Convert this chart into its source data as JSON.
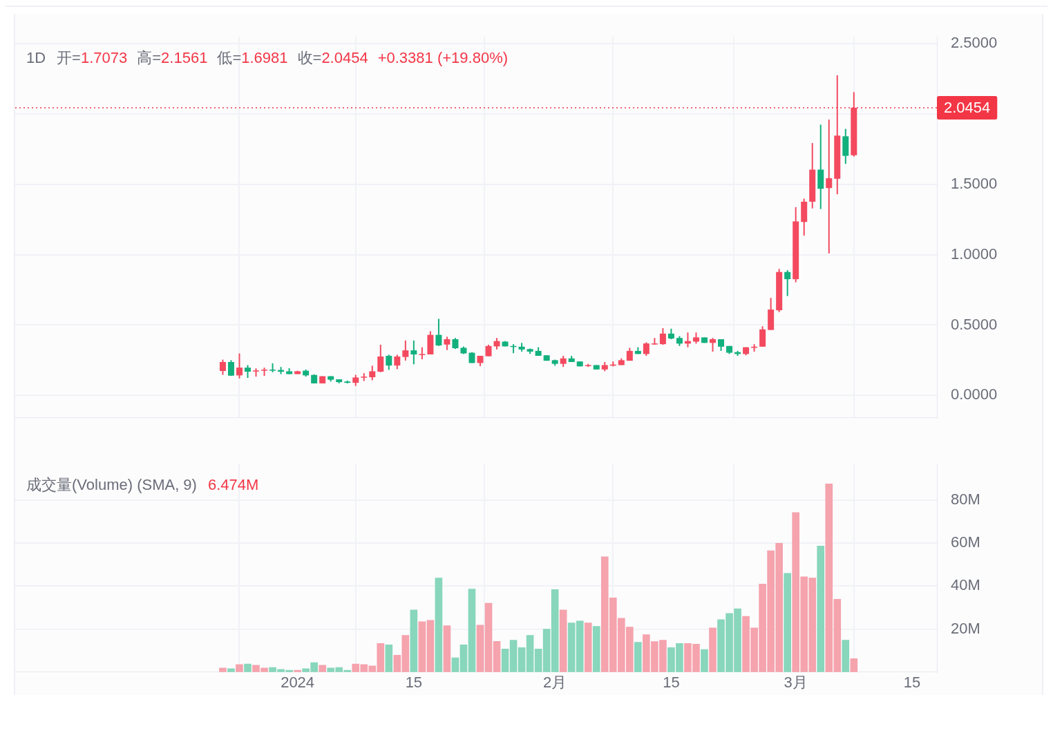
{
  "chart_data": [
    {
      "type": "candlestick",
      "title": "1D",
      "annotations": [
        "开=1.7073",
        "高=2.1561",
        "低=1.6981",
        "收=2.0454",
        "+0.3381 (+19.80%)"
      ],
      "x": [
        "2023-12-23",
        "2023-12-24",
        "2023-12-25",
        "2023-12-26",
        "2023-12-27",
        "2023-12-28",
        "2023-12-29",
        "2023-12-30",
        "2023-12-31",
        "2024-01-01",
        "2024-01-02",
        "2024-01-03",
        "2024-01-04",
        "2024-01-05",
        "2024-01-06",
        "2024-01-07",
        "2024-01-08",
        "2024-01-09",
        "2024-01-10",
        "2024-01-11",
        "2024-01-12",
        "2024-01-13",
        "2024-01-14",
        "2024-01-15",
        "2024-01-16",
        "2024-01-17",
        "2024-01-18",
        "2024-01-19",
        "2024-01-20",
        "2024-01-21",
        "2024-01-22",
        "2024-01-23",
        "2024-01-24",
        "2024-01-25",
        "2024-01-26",
        "2024-01-27",
        "2024-01-28",
        "2024-01-29",
        "2024-01-30",
        "2024-01-31",
        "2024-02-01",
        "2024-02-02",
        "2024-02-03",
        "2024-02-04",
        "2024-02-05",
        "2024-02-06",
        "2024-02-07",
        "2024-02-08",
        "2024-02-09",
        "2024-02-10",
        "2024-02-11",
        "2024-02-12",
        "2024-02-13",
        "2024-02-14",
        "2024-02-15",
        "2024-02-16",
        "2024-02-17",
        "2024-02-18",
        "2024-02-19",
        "2024-02-20",
        "2024-02-21",
        "2024-02-22",
        "2024-02-23",
        "2024-02-24",
        "2024-02-25",
        "2024-02-26",
        "2024-02-27",
        "2024-02-28",
        "2024-02-29",
        "2024-03-01",
        "2024-03-02",
        "2024-03-03",
        "2024-03-04",
        "2024-03-05",
        "2024-03-06",
        "2024-03-07",
        "2024-03-08"
      ],
      "ohlc": [
        [
          0.173,
          0.254,
          0.146,
          0.237
        ],
        [
          0.237,
          0.25,
          0.138,
          0.14
        ],
        [
          0.142,
          0.298,
          0.12,
          0.197
        ],
        [
          0.197,
          0.215,
          0.124,
          0.168
        ],
        [
          0.171,
          0.192,
          0.133,
          0.177
        ],
        [
          0.177,
          0.197,
          0.138,
          0.183
        ],
        [
          0.183,
          0.228,
          0.164,
          0.177
        ],
        [
          0.18,
          0.202,
          0.151,
          0.168
        ],
        [
          0.171,
          0.193,
          0.151,
          0.151
        ],
        [
          0.151,
          0.175,
          0.151,
          0.171
        ],
        [
          0.175,
          0.184,
          0.133,
          0.142
        ],
        [
          0.145,
          0.149,
          0.085,
          0.085
        ],
        [
          0.085,
          0.136,
          0.085,
          0.136
        ],
        [
          0.136,
          0.136,
          0.098,
          0.111
        ],
        [
          0.114,
          0.114,
          0.086,
          0.094
        ],
        [
          0.098,
          0.105,
          0.085,
          0.089
        ],
        [
          0.089,
          0.146,
          0.067,
          0.127
        ],
        [
          0.127,
          0.158,
          0.102,
          0.133
        ],
        [
          0.129,
          0.211,
          0.107,
          0.171
        ],
        [
          0.168,
          0.36,
          0.165,
          0.276
        ],
        [
          0.281,
          0.289,
          0.181,
          0.212
        ],
        [
          0.212,
          0.289,
          0.186,
          0.276
        ],
        [
          0.273,
          0.39,
          0.247,
          0.32
        ],
        [
          0.32,
          0.39,
          0.221,
          0.291
        ],
        [
          0.288,
          0.342,
          0.256,
          0.294
        ],
        [
          0.291,
          0.456,
          0.291,
          0.43
        ],
        [
          0.43,
          0.544,
          0.351,
          0.355
        ],
        [
          0.361,
          0.417,
          0.322,
          0.399
        ],
        [
          0.399,
          0.408,
          0.33,
          0.335
        ],
        [
          0.338,
          0.347,
          0.294,
          0.298
        ],
        [
          0.303,
          0.307,
          0.23,
          0.23
        ],
        [
          0.23,
          0.281,
          0.208,
          0.281
        ],
        [
          0.278,
          0.36,
          0.278,
          0.351
        ],
        [
          0.348,
          0.408,
          0.326,
          0.386
        ],
        [
          0.382,
          0.386,
          0.348,
          0.348
        ],
        [
          0.351,
          0.364,
          0.3,
          0.344
        ],
        [
          0.346,
          0.373,
          0.311,
          0.326
        ],
        [
          0.329,
          0.333,
          0.295,
          0.311
        ],
        [
          0.316,
          0.342,
          0.281,
          0.281
        ],
        [
          0.285,
          0.285,
          0.246,
          0.246
        ],
        [
          0.25,
          0.254,
          0.211,
          0.224
        ],
        [
          0.224,
          0.281,
          0.202,
          0.263
        ],
        [
          0.263,
          0.281,
          0.237,
          0.237
        ],
        [
          0.241,
          0.241,
          0.206,
          0.206
        ],
        [
          0.209,
          0.224,
          0.202,
          0.215
        ],
        [
          0.215,
          0.215,
          0.184,
          0.184
        ],
        [
          0.184,
          0.237,
          0.171,
          0.215
        ],
        [
          0.211,
          0.241,
          0.206,
          0.219
        ],
        [
          0.215,
          0.263,
          0.215,
          0.25
        ],
        [
          0.246,
          0.338,
          0.246,
          0.316
        ],
        [
          0.316,
          0.342,
          0.294,
          0.294
        ],
        [
          0.294,
          0.377,
          0.281,
          0.369
        ],
        [
          0.364,
          0.408,
          0.36,
          0.369
        ],
        [
          0.364,
          0.478,
          0.36,
          0.439
        ],
        [
          0.439,
          0.474,
          0.399,
          0.404
        ],
        [
          0.408,
          0.421,
          0.351,
          0.368
        ],
        [
          0.368,
          0.447,
          0.342,
          0.386
        ],
        [
          0.382,
          0.447,
          0.368,
          0.412
        ],
        [
          0.412,
          0.412,
          0.373,
          0.373
        ],
        [
          0.373,
          0.408,
          0.311,
          0.399
        ],
        [
          0.399,
          0.399,
          0.316,
          0.346
        ],
        [
          0.351,
          0.351,
          0.294,
          0.303
        ],
        [
          0.307,
          0.316,
          0.281,
          0.294
        ],
        [
          0.294,
          0.342,
          0.285,
          0.342
        ],
        [
          0.338,
          0.364,
          0.311,
          0.346
        ],
        [
          0.346,
          0.491,
          0.346,
          0.469
        ],
        [
          0.465,
          0.693,
          0.465,
          0.61
        ],
        [
          0.605,
          0.899,
          0.592,
          0.877
        ],
        [
          0.877,
          0.89,
          0.706,
          0.826
        ],
        [
          0.826,
          1.338,
          0.804,
          1.237
        ],
        [
          1.233,
          1.399,
          1.136,
          1.377
        ],
        [
          1.377,
          1.794,
          1.329,
          1.605
        ],
        [
          1.605,
          1.925,
          1.325,
          1.469
        ],
        [
          1.474,
          1.961,
          1.009,
          1.544
        ],
        [
          1.54,
          2.276,
          1.43,
          1.847
        ],
        [
          1.842,
          1.895,
          1.646,
          1.703
        ],
        [
          1.7073,
          2.1561,
          1.6981,
          2.0454
        ]
      ],
      "colors": [
        "#f34a5f",
        "#12b07c",
        "#f34a5f",
        "#12b07c",
        "#f34a5f",
        "#f34a5f",
        "#12b07c",
        "#12b07c",
        "#12b07c",
        "#f34a5f",
        "#12b07c",
        "#12b07c",
        "#f34a5f",
        "#12b07c",
        "#12b07c",
        "#12b07c",
        "#f34a5f",
        "#f34a5f",
        "#f34a5f",
        "#f34a5f",
        "#12b07c",
        "#f34a5f",
        "#f34a5f",
        "#12b07c",
        "#f34a5f",
        "#f34a5f",
        "#12b07c",
        "#f34a5f",
        "#12b07c",
        "#12b07c",
        "#12b07c",
        "#f34a5f",
        "#f34a5f",
        "#f34a5f",
        "#12b07c",
        "#12b07c",
        "#12b07c",
        "#12b07c",
        "#12b07c",
        "#12b07c",
        "#12b07c",
        "#f34a5f",
        "#12b07c",
        "#12b07c",
        "#f34a5f",
        "#12b07c",
        "#f34a5f",
        "#f34a5f",
        "#f34a5f",
        "#f34a5f",
        "#12b07c",
        "#f34a5f",
        "#f34a5f",
        "#f34a5f",
        "#12b07c",
        "#12b07c",
        "#f34a5f",
        "#f34a5f",
        "#12b07c",
        "#f34a5f",
        "#12b07c",
        "#12b07c",
        "#12b07c",
        "#f34a5f",
        "#f34a5f",
        "#f34a5f",
        "#f34a5f",
        "#f34a5f",
        "#12b07c",
        "#f34a5f",
        "#f34a5f",
        "#f34a5f",
        "#12b07c",
        "#f34a5f",
        "#f34a5f",
        "#12b07c",
        "#f34a5f"
      ],
      "xlim": [
        "2023-11-28",
        "2024-03-18"
      ],
      "xticks": [
        {
          "value": "2024-01-01",
          "label": null
        },
        {
          "value": "2024-01-15",
          "label": null
        },
        {
          "value": "2024-02-01",
          "label": null
        },
        {
          "value": "2024-02-15",
          "label": null
        },
        {
          "value": "2024-03-01",
          "label": null
        },
        {
          "value": "2024-03-15",
          "label": null
        }
      ],
      "ylim": [
        -0.16,
        2.55
      ],
      "yticks": [
        {
          "value": 0,
          "label": "0.0000"
        },
        {
          "value": 0.5,
          "label": "0.5000"
        },
        {
          "value": 1,
          "label": "1.0000"
        },
        {
          "value": 1.5,
          "label": "1.5000"
        },
        {
          "value": 2,
          "label": null
        },
        {
          "value": 2.5,
          "label": "2.5000"
        }
      ],
      "ref_lines": [
        {
          "axis": "y",
          "value": 2.0454,
          "label": "2.0454",
          "color": "#f23645",
          "line_style": "dotted"
        }
      ],
      "grid": true,
      "tick_labels": "y"
    },
    {
      "type": "bar",
      "title": "成交量(Volume) (SMA, 9)",
      "annotations": [
        "6.474M"
      ],
      "x": [
        "2023-12-23",
        "2023-12-24",
        "2023-12-25",
        "2023-12-26",
        "2023-12-27",
        "2023-12-28",
        "2023-12-29",
        "2023-12-30",
        "2023-12-31",
        "2024-01-01",
        "2024-01-02",
        "2024-01-03",
        "2024-01-04",
        "2024-01-05",
        "2024-01-06",
        "2024-01-07",
        "2024-01-08",
        "2024-01-09",
        "2024-01-10",
        "2024-01-11",
        "2024-01-12",
        "2024-01-13",
        "2024-01-14",
        "2024-01-15",
        "2024-01-16",
        "2024-01-17",
        "2024-01-18",
        "2024-01-19",
        "2024-01-20",
        "2024-01-21",
        "2024-01-22",
        "2024-01-23",
        "2024-01-24",
        "2024-01-25",
        "2024-01-26",
        "2024-01-27",
        "2024-01-28",
        "2024-01-29",
        "2024-01-30",
        "2024-01-31",
        "2024-02-01",
        "2024-02-02",
        "2024-02-03",
        "2024-02-04",
        "2024-02-05",
        "2024-02-06",
        "2024-02-07",
        "2024-02-08",
        "2024-02-09",
        "2024-02-10",
        "2024-02-11",
        "2024-02-12",
        "2024-02-13",
        "2024-02-14",
        "2024-02-15",
        "2024-02-16",
        "2024-02-17",
        "2024-02-18",
        "2024-02-19",
        "2024-02-20",
        "2024-02-21",
        "2024-02-22",
        "2024-02-23",
        "2024-02-24",
        "2024-02-25",
        "2024-02-26",
        "2024-02-27",
        "2024-02-28",
        "2024-02-29",
        "2024-03-01",
        "2024-03-02",
        "2024-03-03",
        "2024-03-04",
        "2024-03-05",
        "2024-03-06",
        "2024-03-07",
        "2024-03-08"
      ],
      "values": [
        1.9,
        1.6,
        3.5,
        3.8,
        3.2,
        1.9,
        2.2,
        1.3,
        0.9,
        0.9,
        1.6,
        4.4,
        3.2,
        1.9,
        2.2,
        0.9,
        3.8,
        3.5,
        2.9,
        13.3,
        12.7,
        7.9,
        17.1,
        28.9,
        23.5,
        24.1,
        43.8,
        21.6,
        6.7,
        12.7,
        38.7,
        21.9,
        32.1,
        14.3,
        10.8,
        14.9,
        11.4,
        17.1,
        10.8,
        20.0,
        38.4,
        28.9,
        22.9,
        23.8,
        22.9,
        21.3,
        53.7,
        34.6,
        25.1,
        21.0,
        13.9,
        17.4,
        14.2,
        14.9,
        11.4,
        13.3,
        13.3,
        13.0,
        10.5,
        20.6,
        24.4,
        27.3,
        29.5,
        26.0,
        20.6,
        41.0,
        56.5,
        60.0,
        46.0,
        74.3,
        44.4,
        43.8,
        58.7,
        87.6,
        33.9,
        14.9,
        6.3
      ],
      "colors": [
        "#f5a3ad",
        "#88d6bb",
        "#f5a3ad",
        "#88d6bb",
        "#f5a3ad",
        "#f5a3ad",
        "#88d6bb",
        "#88d6bb",
        "#88d6bb",
        "#f5a3ad",
        "#88d6bb",
        "#88d6bb",
        "#f5a3ad",
        "#88d6bb",
        "#88d6bb",
        "#88d6bb",
        "#f5a3ad",
        "#f5a3ad",
        "#f5a3ad",
        "#f5a3ad",
        "#88d6bb",
        "#f5a3ad",
        "#f5a3ad",
        "#88d6bb",
        "#f5a3ad",
        "#f5a3ad",
        "#88d6bb",
        "#f5a3ad",
        "#88d6bb",
        "#88d6bb",
        "#88d6bb",
        "#f5a3ad",
        "#f5a3ad",
        "#f5a3ad",
        "#88d6bb",
        "#88d6bb",
        "#88d6bb",
        "#88d6bb",
        "#88d6bb",
        "#88d6bb",
        "#88d6bb",
        "#f5a3ad",
        "#88d6bb",
        "#88d6bb",
        "#f5a3ad",
        "#88d6bb",
        "#f5a3ad",
        "#f5a3ad",
        "#f5a3ad",
        "#f5a3ad",
        "#88d6bb",
        "#f5a3ad",
        "#f5a3ad",
        "#f5a3ad",
        "#88d6bb",
        "#88d6bb",
        "#f5a3ad",
        "#f5a3ad",
        "#88d6bb",
        "#f5a3ad",
        "#88d6bb",
        "#88d6bb",
        "#88d6bb",
        "#f5a3ad",
        "#f5a3ad",
        "#f5a3ad",
        "#f5a3ad",
        "#f5a3ad",
        "#88d6bb",
        "#f5a3ad",
        "#f5a3ad",
        "#f5a3ad",
        "#88d6bb",
        "#f5a3ad",
        "#f5a3ad",
        "#88d6bb",
        "#f5a3ad"
      ],
      "xlim": [
        "2023-11-28",
        "2024-03-18"
      ],
      "xticks": [
        {
          "value": "2024-01-01",
          "label": "2024"
        },
        {
          "value": "2024-01-15",
          "label": "15"
        },
        {
          "value": "2024-02-01",
          "label": "2月"
        },
        {
          "value": "2024-02-15",
          "label": "15"
        },
        {
          "value": "2024-03-01",
          "label": "3月"
        },
        {
          "value": "2024-03-15",
          "label": "15"
        }
      ],
      "ylim": [
        0,
        97
      ],
      "yticks": [
        {
          "value": 20,
          "label": "20M"
        },
        {
          "value": 40,
          "label": "40M"
        },
        {
          "value": 60,
          "label": "60M"
        },
        {
          "value": 80,
          "label": "80M"
        }
      ],
      "grid": true
    }
  ]
}
